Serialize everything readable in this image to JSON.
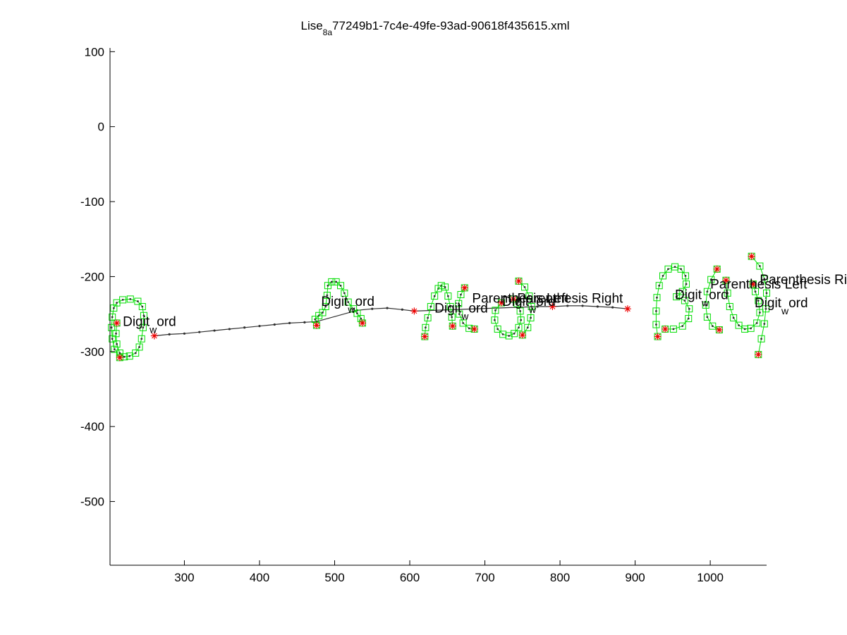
{
  "chart_data": {
    "type": "scatter",
    "title": "Lise_8a77249b1-7c4e-49fe-93ad-90618f435615.xml",
    "title_parts": {
      "base": "Lise",
      "sub": "8a",
      "rest": "77249b1-7c4e-49fe-93ad-90618f435615.xml"
    },
    "xlabel": "",
    "ylabel": "",
    "xlim": [
      201,
      1075
    ],
    "ylim": [
      -585,
      105
    ],
    "xticks": [
      300,
      400,
      500,
      600,
      700,
      800,
      900,
      1000
    ],
    "yticks": [
      100,
      0,
      -100,
      -200,
      -300,
      -400,
      -500
    ],
    "grid": false,
    "colors": {
      "trace": "#303030",
      "box": "#00dd00",
      "star": "#ee0000",
      "axis": "#000000"
    },
    "labels": [
      {
        "x": 218,
        "y": -266,
        "base": "Digit",
        "sub": "w",
        "rest": "ord"
      },
      {
        "x": 482,
        "y": -239,
        "base": "Digit",
        "sub": "w",
        "rest": "ord"
      },
      {
        "x": 633,
        "y": -248,
        "base": "Digit",
        "sub": "w",
        "rest": "ord"
      },
      {
        "x": 683,
        "y": -235,
        "base": "Parenthesis Left",
        "sub": "",
        "rest": ""
      },
      {
        "x": 723,
        "y": -239,
        "base": "Digit",
        "sub": "w",
        "rest": "ord"
      },
      {
        "x": 743,
        "y": -235,
        "base": "Parenthesis Right",
        "sub": "",
        "rest": ""
      },
      {
        "x": 953,
        "y": -230,
        "base": "Digit",
        "sub": "w",
        "rest": "ord"
      },
      {
        "x": 1000,
        "y": -216,
        "base": "Parenthesis Left",
        "sub": "",
        "rest": ""
      },
      {
        "x": 1059,
        "y": -241,
        "base": "Digit",
        "sub": "w",
        "rest": "ord"
      },
      {
        "x": 1066,
        "y": -210,
        "base": "Parenthesis Right",
        "sub": "",
        "rest": ""
      }
    ],
    "series": [
      {
        "kind": "connector",
        "points": [
          [
            260,
            -279
          ],
          [
            280,
            -277
          ],
          [
            300,
            -276
          ],
          [
            320,
            -274
          ],
          [
            340,
            -272
          ],
          [
            360,
            -270
          ],
          [
            380,
            -268
          ],
          [
            400,
            -266
          ],
          [
            420,
            -264
          ],
          [
            440,
            -262
          ],
          [
            460,
            -261
          ],
          [
            476,
            -260
          ],
          [
            530,
            -245
          ],
          [
            550,
            -243
          ],
          [
            570,
            -242
          ],
          [
            590,
            -244
          ],
          [
            606,
            -246
          ],
          [
            770,
            -240
          ],
          [
            790,
            -240
          ],
          [
            810,
            -239
          ],
          [
            830,
            -239
          ],
          [
            850,
            -240
          ],
          [
            870,
            -241
          ],
          [
            890,
            -243
          ]
        ]
      },
      {
        "kind": "digit",
        "points": [
          [
            214,
            -308
          ],
          [
            207,
            -297
          ],
          [
            204,
            -283
          ],
          [
            203,
            -268
          ],
          [
            204,
            -254
          ],
          [
            206,
            -242
          ],
          [
            210,
            -235
          ],
          [
            218,
            -231
          ],
          [
            228,
            -230
          ],
          [
            238,
            -233
          ],
          [
            244,
            -240
          ],
          [
            246,
            -252
          ],
          [
            245,
            -268
          ],
          [
            243,
            -283
          ],
          [
            240,
            -294
          ],
          [
            235,
            -302
          ],
          [
            227,
            -306
          ],
          [
            220,
            -307
          ],
          [
            214,
            -302
          ],
          [
            210,
            -290
          ],
          [
            209,
            -276
          ],
          [
            210,
            -262
          ]
        ]
      },
      {
        "kind": "digit",
        "points": [
          [
            476,
            -265
          ],
          [
            474,
            -257
          ],
          [
            479,
            -252
          ],
          [
            484,
            -248
          ],
          [
            488,
            -240
          ],
          [
            490,
            -225
          ],
          [
            491,
            -212
          ],
          [
            496,
            -207
          ],
          [
            502,
            -207
          ],
          [
            508,
            -212
          ],
          [
            513,
            -222
          ],
          [
            518,
            -234
          ],
          [
            525,
            -243
          ],
          [
            530,
            -249
          ],
          [
            535,
            -256
          ],
          [
            537,
            -262
          ]
        ]
      },
      {
        "kind": "digit",
        "points": [
          [
            620,
            -280
          ],
          [
            621,
            -268
          ],
          [
            624,
            -255
          ],
          [
            628,
            -240
          ],
          [
            633,
            -226
          ],
          [
            638,
            -216
          ],
          [
            642,
            -212
          ],
          [
            647,
            -214
          ],
          [
            651,
            -226
          ],
          [
            654,
            -240
          ],
          [
            656,
            -254
          ],
          [
            657,
            -266
          ]
        ]
      },
      {
        "kind": "paren",
        "points": [
          [
            673,
            -215
          ],
          [
            668,
            -224
          ],
          [
            665,
            -236
          ],
          [
            666,
            -250
          ],
          [
            671,
            -262
          ],
          [
            679,
            -269
          ],
          [
            686,
            -270
          ]
        ]
      },
      {
        "kind": "digit",
        "points": [
          [
            722,
            -235
          ],
          [
            714,
            -245
          ],
          [
            713,
            -258
          ],
          [
            717,
            -270
          ],
          [
            724,
            -277
          ],
          [
            732,
            -279
          ],
          [
            739,
            -276
          ],
          [
            745,
            -268
          ],
          [
            748,
            -258
          ],
          [
            747,
            -246
          ],
          [
            743,
            -236
          ],
          [
            738,
            -230
          ]
        ]
      },
      {
        "kind": "paren",
        "points": [
          [
            745,
            -206
          ],
          [
            753,
            -214
          ],
          [
            759,
            -226
          ],
          [
            762,
            -240
          ],
          [
            761,
            -255
          ],
          [
            757,
            -268
          ],
          [
            750,
            -278
          ]
        ]
      },
      {
        "kind": "digit",
        "points": [
          [
            930,
            -280
          ],
          [
            928,
            -264
          ],
          [
            928,
            -246
          ],
          [
            929,
            -228
          ],
          [
            932,
            -212
          ],
          [
            937,
            -199
          ],
          [
            944,
            -190
          ],
          [
            953,
            -187
          ],
          [
            961,
            -190
          ],
          [
            967,
            -199
          ],
          [
            968,
            -210
          ],
          [
            963,
            -220
          ],
          [
            955,
            -227
          ],
          [
            966,
            -232
          ],
          [
            972,
            -243
          ],
          [
            971,
            -256
          ],
          [
            963,
            -266
          ],
          [
            951,
            -270
          ],
          [
            940,
            -270
          ]
        ]
      },
      {
        "kind": "paren",
        "points": [
          [
            1009,
            -190
          ],
          [
            1001,
            -204
          ],
          [
            996,
            -220
          ],
          [
            994,
            -238
          ],
          [
            996,
            -254
          ],
          [
            1003,
            -266
          ],
          [
            1012,
            -271
          ]
        ]
      },
      {
        "kind": "digit",
        "points": [
          [
            1021,
            -205
          ],
          [
            1023,
            -222
          ],
          [
            1026,
            -240
          ],
          [
            1031,
            -255
          ],
          [
            1038,
            -265
          ],
          [
            1046,
            -270
          ],
          [
            1054,
            -269
          ],
          [
            1062,
            -262
          ],
          [
            1066,
            -248
          ],
          [
            1064,
            -232
          ],
          [
            1060,
            -220
          ],
          [
            1057,
            -210
          ]
        ]
      },
      {
        "kind": "paren",
        "points": [
          [
            1055,
            -173
          ],
          [
            1066,
            -186
          ],
          [
            1072,
            -203
          ],
          [
            1075,
            -222
          ],
          [
            1074,
            -243
          ],
          [
            1072,
            -263
          ],
          [
            1068,
            -283
          ],
          [
            1064,
            -304
          ]
        ]
      }
    ],
    "endpoints": [
      [
        214,
        -308
      ],
      [
        210,
        -262
      ],
      [
        260,
        -279
      ],
      [
        476,
        -265
      ],
      [
        537,
        -262
      ],
      [
        606,
        -246
      ],
      [
        620,
        -280
      ],
      [
        657,
        -266
      ],
      [
        673,
        -215
      ],
      [
        686,
        -270
      ],
      [
        722,
        -235
      ],
      [
        738,
        -230
      ],
      [
        745,
        -206
      ],
      [
        750,
        -278
      ],
      [
        790,
        -240
      ],
      [
        890,
        -243
      ],
      [
        930,
        -280
      ],
      [
        940,
        -270
      ],
      [
        1009,
        -190
      ],
      [
        1012,
        -271
      ],
      [
        1021,
        -205
      ],
      [
        1057,
        -210
      ],
      [
        1055,
        -173
      ],
      [
        1064,
        -304
      ]
    ]
  }
}
